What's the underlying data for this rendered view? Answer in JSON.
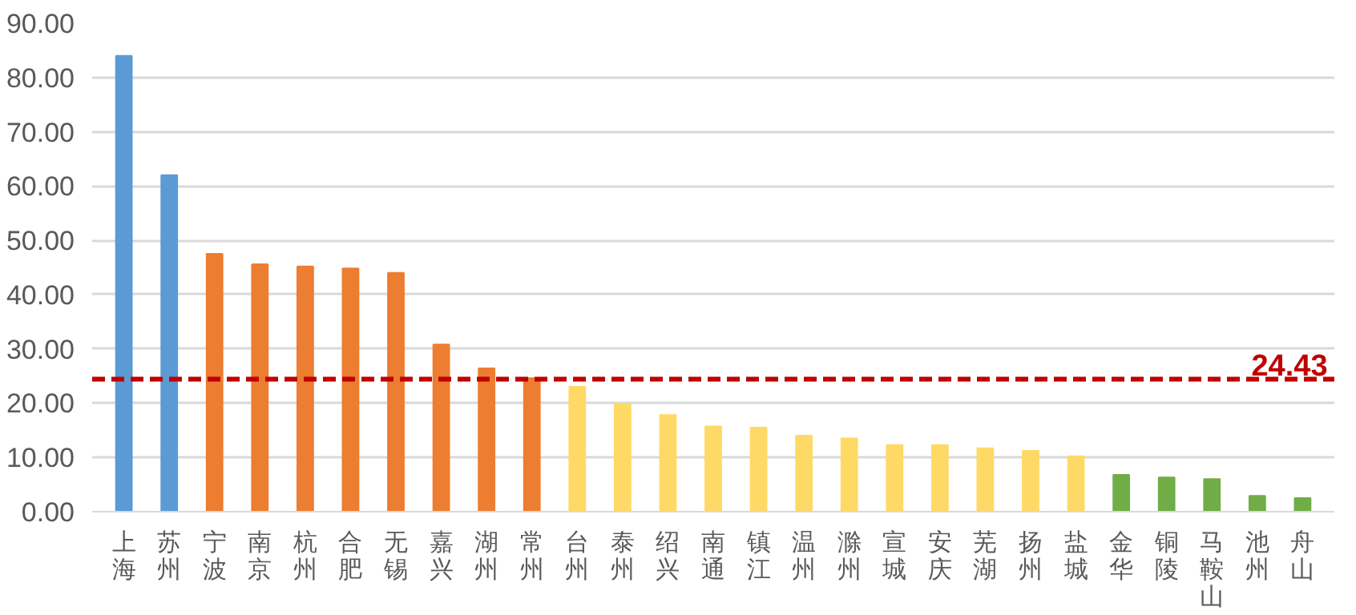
{
  "chart_data": {
    "type": "bar",
    "categories": [
      "上海",
      "苏州",
      "宁波",
      "南京",
      "杭州",
      "合肥",
      "无锡",
      "嘉兴",
      "湖州",
      "常州",
      "台州",
      "泰州",
      "绍兴",
      "南通",
      "镇江",
      "温州",
      "滁州",
      "宣城",
      "安庆",
      "芜湖",
      "扬州",
      "盐城",
      "金华",
      "铜陵",
      "马鞍山",
      "池州",
      "舟山"
    ],
    "values": [
      84,
      62,
      47.5,
      45.6,
      45.2,
      44.8,
      44,
      30.8,
      26.4,
      24.6,
      23,
      19.8,
      17.8,
      15.7,
      15.5,
      14,
      13.5,
      12.3,
      12.3,
      11.7,
      11.2,
      10.2,
      6.8,
      6.3,
      6,
      2.9,
      2.5
    ],
    "colors": [
      "#5b9bd5",
      "#5b9bd5",
      "#ed7d31",
      "#ed7d31",
      "#ed7d31",
      "#ed7d31",
      "#ed7d31",
      "#ed7d31",
      "#ed7d31",
      "#ed7d31",
      "#ffd966",
      "#ffd966",
      "#ffd966",
      "#ffd966",
      "#ffd966",
      "#ffd966",
      "#ffd966",
      "#ffd966",
      "#ffd966",
      "#ffd966",
      "#ffd966",
      "#ffd966",
      "#70ad47",
      "#70ad47",
      "#70ad47",
      "#70ad47",
      "#70ad47"
    ],
    "ylim": [
      0,
      90
    ],
    "yticks": [
      {
        "value": 0,
        "label": "0.00"
      },
      {
        "value": 10,
        "label": "10.00"
      },
      {
        "value": 20,
        "label": "20.00"
      },
      {
        "value": 30,
        "label": "30.00"
      },
      {
        "value": 40,
        "label": "40.00"
      },
      {
        "value": 50,
        "label": "50.00"
      },
      {
        "value": 60,
        "label": "60.00"
      },
      {
        "value": 70,
        "label": "70.00"
      },
      {
        "value": 80,
        "label": "80.00"
      },
      {
        "value": 90,
        "label": "90.00"
      }
    ],
    "grid": "y",
    "ref_lines": [
      {
        "axis": "y",
        "value": 24.43,
        "label": "24.43",
        "color": "#c00000",
        "line_style": "dashed"
      }
    ]
  }
}
